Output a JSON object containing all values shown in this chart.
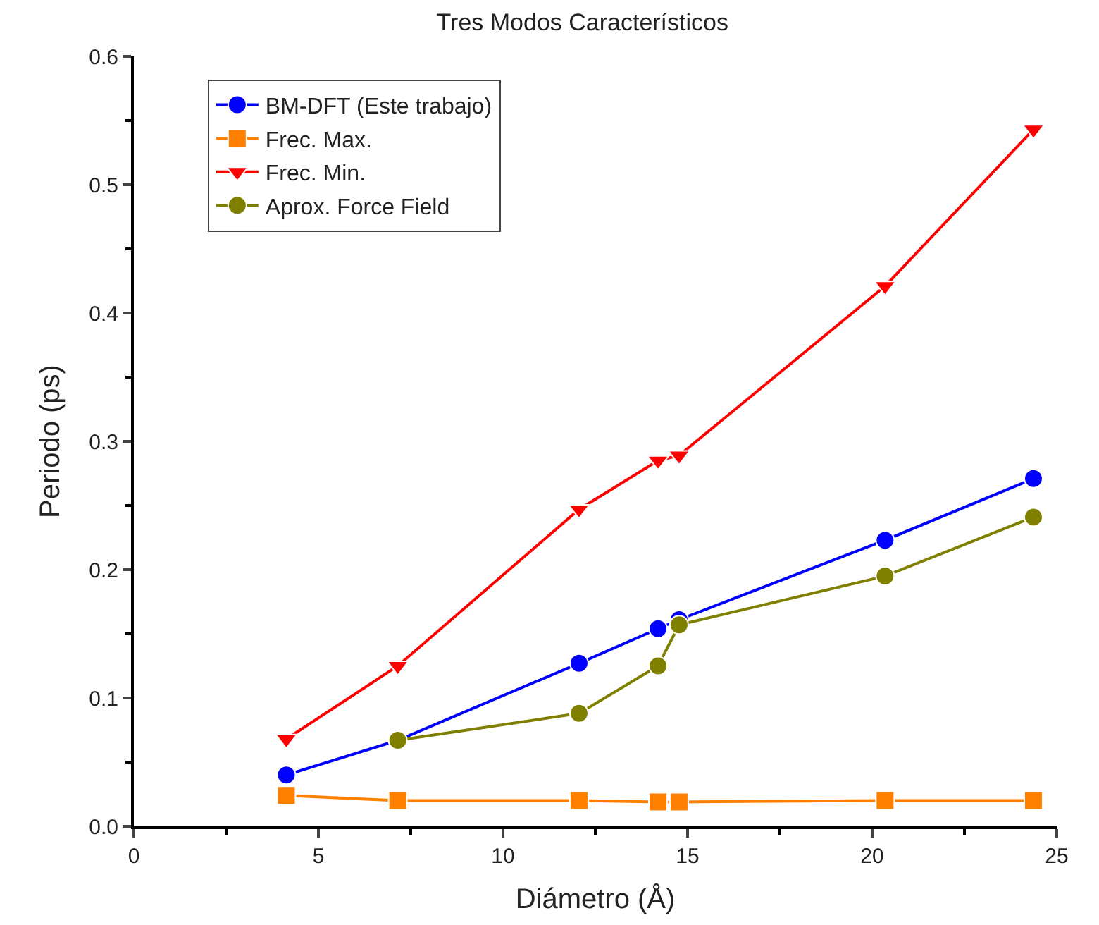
{
  "chart_data": {
    "type": "line",
    "title": "Tres Modos Característicos",
    "xlabel": "Diámetro (Å)",
    "ylabel": "Periodo (ps)",
    "xlim": [
      0,
      25
    ],
    "xticks": [
      0,
      5,
      10,
      15,
      20,
      25
    ],
    "ylim": [
      0,
      0.6
    ],
    "yticks": [
      {
        "value": 0,
        "label": "0.0"
      },
      0.1,
      0.2,
      0.3,
      0.4,
      0.5,
      0.6
    ],
    "legend": "top left",
    "line_style": "solid",
    "series": [
      {
        "name": "BM-DFT (Este trabajo)",
        "color": "#0000ff",
        "marker": "circle",
        "x": [
          4.13,
          7.15,
          12.06,
          14.2,
          14.77,
          20.35,
          24.37
        ],
        "values": [
          0.04,
          0.067,
          0.127,
          0.154,
          0.161,
          0.223,
          0.271
        ]
      },
      {
        "name": "Frec. Max.",
        "color": "#ff8000",
        "marker": "square",
        "x": [
          4.13,
          7.15,
          12.06,
          14.2,
          14.77,
          20.35,
          24.37
        ],
        "values": [
          0.024,
          0.02,
          0.02,
          0.019,
          0.019,
          0.02,
          0.02
        ]
      },
      {
        "name": "Frec. Min.",
        "color": "#ff0000",
        "marker": "triangle",
        "x": [
          4.13,
          7.15,
          12.06,
          14.2,
          14.77,
          20.35,
          24.37
        ],
        "values": [
          0.068,
          0.125,
          0.247,
          0.285,
          0.289,
          0.421,
          0.543
        ]
      },
      {
        "name": "Aprox. Force Field",
        "color": "#808000",
        "marker": "circle",
        "x": [
          7.15,
          12.06,
          14.2,
          14.77,
          20.35,
          24.37
        ],
        "values": [
          0.067,
          0.088,
          0.125,
          0.157,
          0.195,
          0.241
        ]
      }
    ]
  }
}
